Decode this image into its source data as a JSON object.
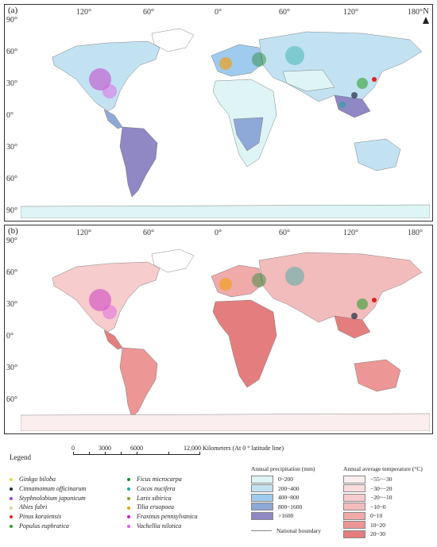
{
  "panels": [
    {
      "label": "(a)",
      "lon_labels": [
        "120°",
        "60°",
        "0°",
        "60°",
        "120°",
        "180°"
      ],
      "lat_labels": [
        "90°",
        "60°",
        "30°",
        "0°",
        "30°",
        "60°",
        "90°"
      ],
      "north_label": "N"
    },
    {
      "label": "(b)",
      "lon_labels": [
        "120°",
        "60°",
        "0°",
        "60°",
        "120°",
        "180°"
      ],
      "lat_labels": [
        "90°",
        "60°",
        "30°",
        "0°",
        "30°",
        "60°"
      ]
    }
  ],
  "scale": {
    "ticks": [
      "0",
      "3000",
      "6000",
      "12,000"
    ],
    "units": "Kilometers (At 0 ° latitude line)"
  },
  "legend": {
    "title": "Legend",
    "species": [
      {
        "name": "Ginkgo biloba",
        "color": "#e8d34a"
      },
      {
        "name": "Cinnamomum officinarum",
        "color": "#1f2a44"
      },
      {
        "name": "Styphnolobium japonicum",
        "color": "#a040d0"
      },
      {
        "name": "Abies fabri",
        "color": "#e0d0a0"
      },
      {
        "name": "Pinus koraiensis",
        "color": "#e02020"
      },
      {
        "name": "Populus euphratica",
        "color": "#30a030"
      },
      {
        "name": "Ficus microcarpa",
        "color": "#1e8a2e"
      },
      {
        "name": "Cocos nucifera",
        "color": "#1aa7a0"
      },
      {
        "name": "Larix sibirica",
        "color": "#8a9a40"
      },
      {
        "name": "Tilia eruopoea",
        "color": "#f0a020"
      },
      {
        "name": "Fraxinus pennsylvanica",
        "color": "#c020c0"
      },
      {
        "name": "Vachellia nilotica",
        "color": "#e060e0"
      }
    ],
    "precipitation": {
      "title": "Annual precipitation (mm)",
      "classes": [
        {
          "label": "0~200",
          "color": "#dff4f4"
        },
        {
          "label": "200~400",
          "color": "#c2e2f2"
        },
        {
          "label": "400~800",
          "color": "#9fcbee"
        },
        {
          "label": "800~1600",
          "color": "#8ea8d8"
        },
        {
          "label": ">1600",
          "color": "#8f88c4"
        }
      ],
      "boundary_label": "National boundary"
    },
    "temperature": {
      "title": "Annual average temperature (°C)",
      "classes": [
        {
          "label": "−55~−30",
          "color": "#fbeeee"
        },
        {
          "label": "−30~−20",
          "color": "#f9dcdc"
        },
        {
          "label": "−20~−10",
          "color": "#f6cccc"
        },
        {
          "label": "−10~0",
          "color": "#f3bcbc"
        },
        {
          "label": "0~10",
          "color": "#f0aaaa"
        },
        {
          "label": "10~20",
          "color": "#ec9696"
        },
        {
          "label": "20~30",
          "color": "#e47e7e"
        }
      ]
    }
  }
}
